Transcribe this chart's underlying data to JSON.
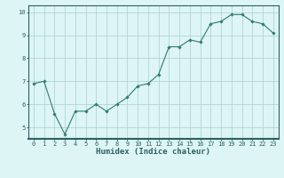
{
  "x": [
    0,
    1,
    2,
    3,
    4,
    5,
    6,
    7,
    8,
    9,
    10,
    11,
    12,
    13,
    14,
    15,
    16,
    17,
    18,
    19,
    20,
    21,
    22,
    23
  ],
  "y": [
    6.9,
    7.0,
    5.6,
    4.7,
    5.7,
    5.7,
    6.0,
    5.7,
    6.0,
    6.3,
    6.8,
    6.9,
    7.3,
    8.5,
    8.5,
    8.8,
    8.7,
    9.5,
    9.6,
    9.9,
    9.9,
    9.6,
    9.5,
    9.1
  ],
  "line_color": "#2e7b6e",
  "marker": "D",
  "marker_size": 1.8,
  "linewidth": 0.8,
  "bg_color": "#ddf5f5",
  "grid_color": "#aacfcf",
  "xlabel": "Humidex (Indice chaleur)",
  "ylabel": "",
  "xlim": [
    -0.5,
    23.5
  ],
  "ylim": [
    4.5,
    10.3
  ],
  "yticks": [
    5,
    6,
    7,
    8,
    9,
    10
  ],
  "xticks": [
    0,
    1,
    2,
    3,
    4,
    5,
    6,
    7,
    8,
    9,
    10,
    11,
    12,
    13,
    14,
    15,
    16,
    17,
    18,
    19,
    20,
    21,
    22,
    23
  ],
  "tick_label_fontsize": 5.0,
  "xlabel_fontsize": 6.5,
  "axis_color": "#2e6060",
  "tick_color": "#2e6060",
  "bottom_bar_color": "#2e6060"
}
